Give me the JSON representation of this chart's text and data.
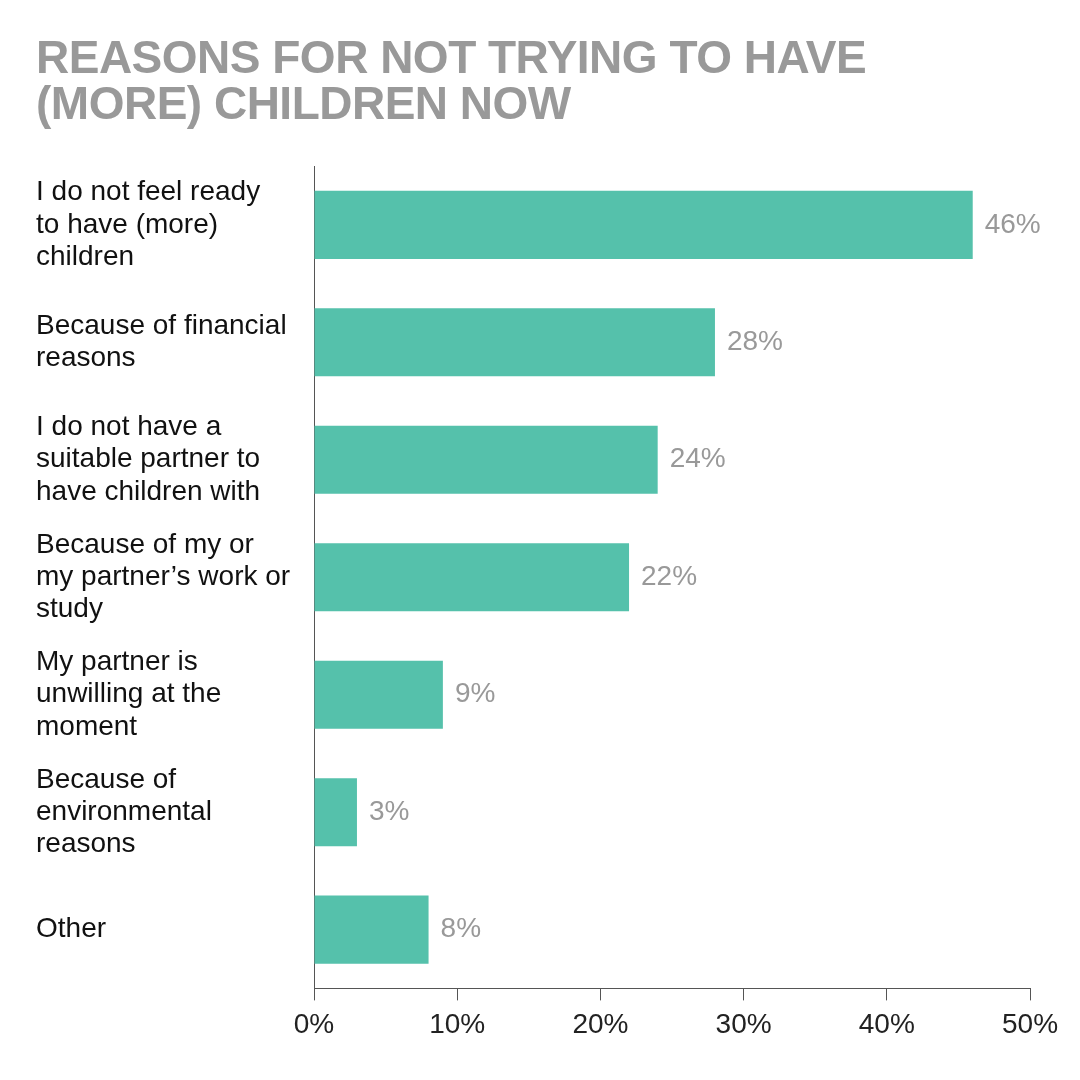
{
  "chart_data": {
    "type": "bar",
    "orientation": "horizontal",
    "title": "REASONS FOR NOT TRYING TO HAVE (MORE) CHILDREN NOW",
    "categories": [
      "I do not feel ready to have (more) children",
      "Because of financial reasons",
      "I do not have a suitable partner to have children with",
      "Because of my or my partner’s work or study",
      "My partner is unwilling at the moment",
      "Because of environmental reasons",
      "Other"
    ],
    "values": [
      46,
      28,
      24,
      22,
      9,
      3,
      8
    ],
    "value_labels": [
      "46%",
      "28%",
      "24%",
      "22%",
      "9%",
      "3%",
      "8%"
    ],
    "color": "#55c1ab",
    "xlim": [
      0,
      50
    ],
    "xticks": [
      {
        "value": 0,
        "label": "0%"
      },
      {
        "value": 10,
        "label": "10%"
      },
      {
        "value": 20,
        "label": "20%"
      },
      {
        "value": 30,
        "label": "30%"
      },
      {
        "value": 40,
        "label": "40%"
      },
      {
        "value": 50,
        "label": "50%"
      }
    ]
  }
}
